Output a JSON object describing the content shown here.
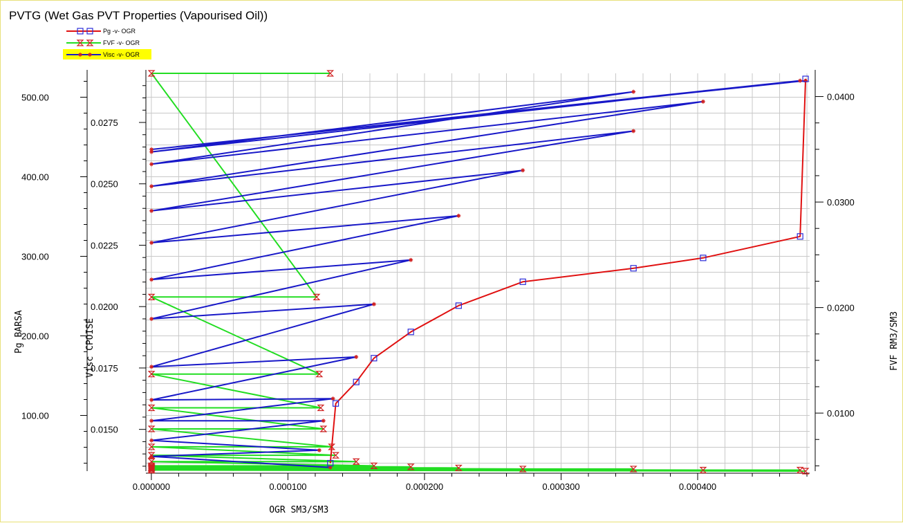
{
  "window": {
    "title": "PVTG (Wet Gas PVT Properties (Vapourised Oil))"
  },
  "colors": {
    "pg": "#e01010",
    "fvf": "#22dd22",
    "visc": "#1818c8",
    "grid": "#c8c8c8",
    "marker_pg": "#2b2bd8",
    "marker_fvf": "#d02020",
    "marker_visc": "#d02020",
    "legend_highlight": "#ffff00"
  },
  "chart_data": {
    "type": "line",
    "title": "PVTG (Wet Gas PVT Properties (Vapourised Oil))",
    "xlabel": "OGR  SM3/SM3",
    "ylabel_left": "Pg  BARSA",
    "ylabel_visc": "Visc  CPOISE",
    "ylabel_right": "FVF  RM3/SM3",
    "xlim": [
      -4e-06,
      0.000482
    ],
    "ylim_pg": [
      30,
      530
    ],
    "ylim_visc": [
      0.0133,
      0.0295
    ],
    "ylim_fvf": [
      0.0045,
      0.0422
    ],
    "x_ticks": [
      0.0,
      0.0001,
      0.0002,
      0.0003,
      0.0004
    ],
    "x_tick_labels": [
      "0.000000",
      "0.000100",
      "0.000200",
      "0.000300",
      "0.000400"
    ],
    "pg_ticks": [
      100,
      200,
      300,
      400,
      500
    ],
    "pg_tick_labels": [
      "100.00",
      "200.00",
      "300.00",
      "400.00",
      "500.00"
    ],
    "visc_ticks": [
      0.015,
      0.0175,
      0.02,
      0.0225,
      0.025,
      0.0275
    ],
    "visc_tick_labels": [
      "0.0150",
      "0.0175",
      "0.0200",
      "0.0225",
      "0.0250",
      "0.0275"
    ],
    "fvf_ticks": [
      0.01,
      0.02,
      0.03,
      0.04
    ],
    "fvf_tick_labels": [
      "0.0100",
      "0.0200",
      "0.0300",
      "0.0400"
    ],
    "grid": true,
    "legend_position": "top-left",
    "legend": [
      {
        "label": "Pg  -v- OGR",
        "marker": "square"
      },
      {
        "label": "FVF -v- OGR",
        "marker": "hourglass"
      },
      {
        "label": "Visc -v- OGR",
        "marker": "star",
        "highlighted": true
      }
    ],
    "series": [
      {
        "name": "Pg  -v- OGR",
        "axis": "pg",
        "x": [
          0.000131,
          0.000135,
          0.00015,
          0.000163,
          0.00019,
          0.000225,
          0.000272,
          0.000353,
          0.000404,
          0.000475,
          0.000479
        ],
        "y": [
          40,
          115,
          142,
          172,
          205,
          238,
          268,
          285,
          298,
          325,
          523
        ]
      },
      {
        "name": "FVF -v- OGR",
        "axis": "fvf",
        "x": [
          0.000131,
          1e-07,
          0.000121,
          1e-07,
          0.000123,
          1e-07,
          0.000124,
          1e-07,
          0.000126,
          1e-07,
          0.000132,
          1e-07,
          0.000135,
          1e-07,
          0.00015,
          1e-07,
          0.000163,
          1e-07,
          0.00019,
          1e-07,
          0.000225,
          1e-07,
          0.000272,
          1e-07,
          0.000353,
          1e-07,
          0.000404,
          1e-07,
          0.000475,
          1e-07,
          0.000479
        ],
        "y": [
          0.0422,
          0.0422,
          0.021,
          0.021,
          0.0137,
          0.0137,
          0.0105,
          0.0105,
          0.0085,
          0.0085,
          0.0068,
          0.0068,
          0.006,
          0.006,
          0.0054,
          0.0054,
          0.005,
          0.005,
          0.0049,
          0.0049,
          0.0048,
          0.0048,
          0.0047,
          0.0047,
          0.0047,
          0.0047,
          0.0046,
          0.0046,
          0.0046,
          0.0046,
          0.0045
        ]
      },
      {
        "name": "Visc -v- OGR",
        "axis": "visc",
        "x": [
          0.000131,
          1e-07,
          0.000123,
          1e-07,
          0.000126,
          1e-07,
          0.000133,
          1e-07,
          0.00015,
          1e-07,
          0.000163,
          1e-07,
          0.00019,
          1e-07,
          0.000225,
          1e-07,
          0.000272,
          1e-07,
          0.000353,
          1e-07,
          0.000404,
          1e-07,
          0.000353,
          1e-07,
          0.000475,
          1e-07,
          0.000479
        ],
        "y": [
          0.01345,
          0.0139,
          0.01415,
          0.01455,
          0.01535,
          0.01535,
          0.01625,
          0.0162,
          0.01795,
          0.01755,
          0.0201,
          0.0195,
          0.0219,
          0.0211,
          0.0237,
          0.0226,
          0.02555,
          0.0239,
          0.02715,
          0.0249,
          0.02835,
          0.0258,
          0.02875,
          0.0263,
          0.0292,
          0.0264,
          0.0292
        ]
      }
    ]
  }
}
